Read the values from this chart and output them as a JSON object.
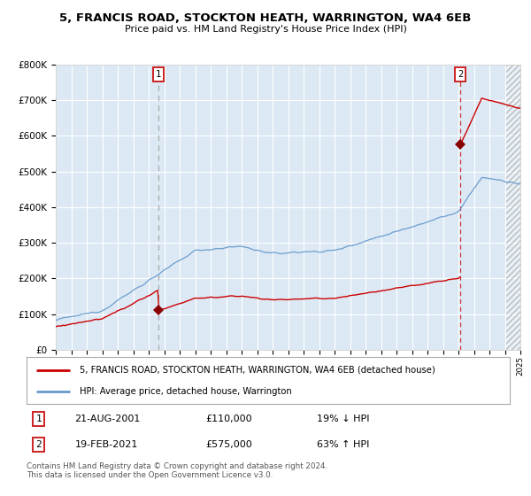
{
  "title": "5, FRANCIS ROAD, STOCKTON HEATH, WARRINGTON, WA4 6EB",
  "subtitle": "Price paid vs. HM Land Registry's House Price Index (HPI)",
  "legend_label_red": "5, FRANCIS ROAD, STOCKTON HEATH, WARRINGTON, WA4 6EB (detached house)",
  "legend_label_blue": "HPI: Average price, detached house, Warrington",
  "ann1_date": "21-AUG-2001",
  "ann1_price": "£110,000",
  "ann1_pct": "19% ↓ HPI",
  "ann2_date": "19-FEB-2021",
  "ann2_price": "£575,000",
  "ann2_pct": "63% ↑ HPI",
  "xmin": 1995,
  "xmax": 2025,
  "ymin": 0,
  "ymax": 800000,
  "yticks": [
    0,
    100000,
    200000,
    300000,
    400000,
    500000,
    600000,
    700000,
    800000
  ],
  "ytick_labels": [
    "£0",
    "£100K",
    "£200K",
    "£300K",
    "£400K",
    "£500K",
    "£600K",
    "£700K",
    "£800K"
  ],
  "background_color": "#dce9f5",
  "line_color_red": "#cc0000",
  "line_color_blue": "#6699cc",
  "marker_color": "#880000",
  "vline1_color": "#aaaaaa",
  "vline2_color": "#cc3333",
  "footer": "Contains HM Land Registry data © Crown copyright and database right 2024.\nThis data is licensed under the Open Government Licence v3.0.",
  "sale1_price": 110000,
  "sale2_price": 575000,
  "sale1_year": 2001.64,
  "sale2_year": 2021.13,
  "hatch_start": 2024.08
}
